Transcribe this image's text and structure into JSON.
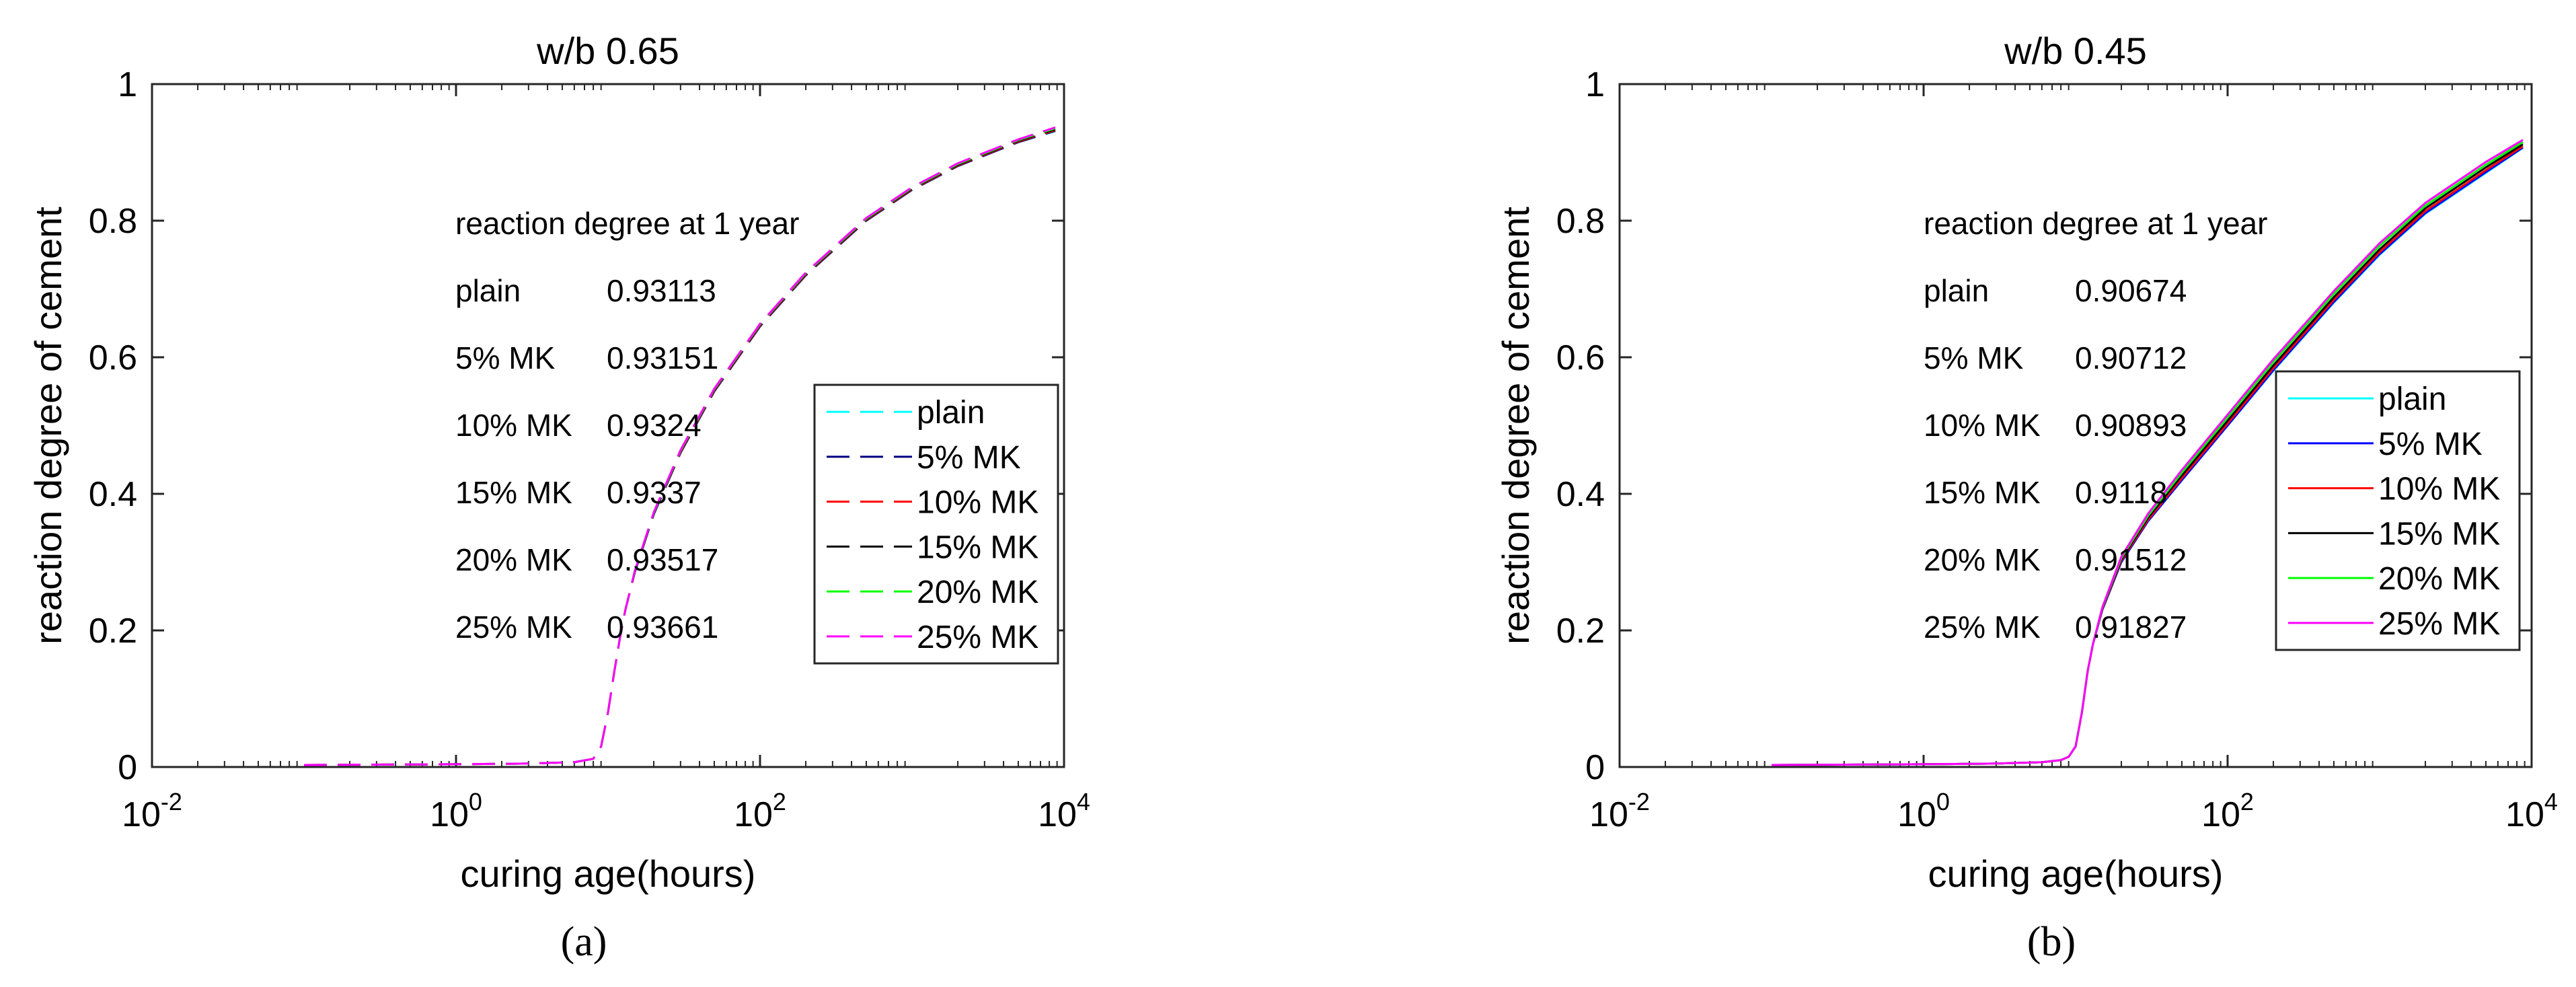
{
  "chart_data": [
    {
      "type": "line",
      "panel_label": "(a)",
      "title": "w/b 0.65",
      "xlabel": "curing age(hours)",
      "ylabel": "reaction degree of cement",
      "x_scale": "log",
      "xlim": [
        0.01,
        10000
      ],
      "ylim": [
        0,
        1
      ],
      "x_ticks": [
        0.01,
        1,
        100,
        10000
      ],
      "x_tick_labels": [
        {
          "base": "10",
          "exp": "-2"
        },
        {
          "base": "10",
          "exp": "0"
        },
        {
          "base": "10",
          "exp": "2"
        },
        {
          "base": "10",
          "exp": "4"
        }
      ],
      "y_ticks": [
        0,
        0.2,
        0.4,
        0.6,
        0.8,
        1
      ],
      "y_tick_labels": [
        "0",
        "0.2",
        "0.4",
        "0.6",
        "0.8",
        "1"
      ],
      "line_style": "dashed",
      "legend_position": "right",
      "annotation_title": "reaction degree at 1 year",
      "x": [
        0.1,
        1,
        3,
        6,
        8,
        9,
        10,
        11,
        12,
        13,
        15,
        20,
        30,
        50,
        100,
        200,
        500,
        1000,
        2000,
        5000,
        8760
      ],
      "series": [
        {
          "name": "plain",
          "color": "#00ffff",
          "final_label": "0.93113",
          "values": [
            0.003,
            0.004,
            0.005,
            0.007,
            0.012,
            0.03,
            0.08,
            0.14,
            0.19,
            0.23,
            0.285,
            0.37,
            0.46,
            0.55,
            0.645,
            0.72,
            0.8,
            0.845,
            0.88,
            0.915,
            0.931
          ]
        },
        {
          "name": "5% MK",
          "color": "#000080",
          "final_label": "0.93151",
          "values": [
            0.003,
            0.004,
            0.005,
            0.007,
            0.012,
            0.03,
            0.08,
            0.14,
            0.19,
            0.23,
            0.285,
            0.37,
            0.46,
            0.55,
            0.645,
            0.72,
            0.8,
            0.845,
            0.88,
            0.915,
            0.9315
          ]
        },
        {
          "name": "10% MK",
          "color": "#ff0000",
          "final_label": "0.9324",
          "values": [
            0.003,
            0.004,
            0.005,
            0.007,
            0.012,
            0.03,
            0.08,
            0.14,
            0.19,
            0.23,
            0.286,
            0.371,
            0.461,
            0.551,
            0.646,
            0.721,
            0.801,
            0.846,
            0.881,
            0.916,
            0.9324
          ]
        },
        {
          "name": "15% MK",
          "color": "#000000",
          "final_label": "0.9337",
          "values": [
            0.003,
            0.004,
            0.005,
            0.007,
            0.012,
            0.03,
            0.08,
            0.14,
            0.19,
            0.23,
            0.286,
            0.371,
            0.462,
            0.552,
            0.647,
            0.722,
            0.802,
            0.847,
            0.882,
            0.917,
            0.9337
          ]
        },
        {
          "name": "20% MK",
          "color": "#00ff00",
          "final_label": "0.93517",
          "values": [
            0.003,
            0.004,
            0.005,
            0.007,
            0.012,
            0.03,
            0.08,
            0.14,
            0.19,
            0.23,
            0.287,
            0.372,
            0.463,
            0.553,
            0.648,
            0.723,
            0.803,
            0.848,
            0.883,
            0.918,
            0.9352
          ]
        },
        {
          "name": "25% MK",
          "color": "#ff00ff",
          "final_label": "0.93661",
          "values": [
            0.003,
            0.004,
            0.005,
            0.007,
            0.012,
            0.03,
            0.08,
            0.14,
            0.19,
            0.23,
            0.287,
            0.373,
            0.464,
            0.554,
            0.649,
            0.724,
            0.804,
            0.849,
            0.884,
            0.919,
            0.9366
          ]
        }
      ]
    },
    {
      "type": "line",
      "panel_label": "(b)",
      "title": "w/b 0.45",
      "xlabel": "curing age(hours)",
      "ylabel": "reaction degree of cement",
      "x_scale": "log",
      "xlim": [
        0.01,
        10000
      ],
      "ylim": [
        0,
        1
      ],
      "x_ticks": [
        0.01,
        1,
        100,
        10000
      ],
      "x_tick_labels": [
        {
          "base": "10",
          "exp": "-2"
        },
        {
          "base": "10",
          "exp": "0"
        },
        {
          "base": "10",
          "exp": "2"
        },
        {
          "base": "10",
          "exp": "4"
        }
      ],
      "y_ticks": [
        0,
        0.2,
        0.4,
        0.6,
        0.8,
        1
      ],
      "y_tick_labels": [
        "0",
        "0.2",
        "0.4",
        "0.6",
        "0.8",
        "1"
      ],
      "line_style": "solid",
      "legend_position": "right",
      "annotation_title": "reaction degree at 1 year",
      "x": [
        0.1,
        1,
        3,
        6,
        8,
        9,
        10,
        11,
        12,
        13,
        15,
        20,
        30,
        50,
        100,
        200,
        500,
        1000,
        2000,
        5000,
        8760
      ],
      "series": [
        {
          "name": "plain",
          "color": "#00ffff",
          "final_label": "0.90674",
          "values": [
            0.003,
            0.004,
            0.005,
            0.007,
            0.01,
            0.015,
            0.03,
            0.08,
            0.14,
            0.18,
            0.23,
            0.3,
            0.36,
            0.42,
            0.5,
            0.58,
            0.68,
            0.75,
            0.81,
            0.87,
            0.9067
          ]
        },
        {
          "name": "5% MK",
          "color": "#0000ff",
          "final_label": "0.90712",
          "values": [
            0.003,
            0.004,
            0.005,
            0.007,
            0.01,
            0.015,
            0.03,
            0.08,
            0.14,
            0.18,
            0.23,
            0.3,
            0.36,
            0.42,
            0.5,
            0.581,
            0.681,
            0.751,
            0.811,
            0.871,
            0.9071
          ]
        },
        {
          "name": "10% MK",
          "color": "#ff0000",
          "final_label": "0.90893",
          "values": [
            0.003,
            0.004,
            0.005,
            0.007,
            0.01,
            0.015,
            0.03,
            0.08,
            0.14,
            0.18,
            0.231,
            0.302,
            0.362,
            0.423,
            0.503,
            0.584,
            0.684,
            0.754,
            0.814,
            0.874,
            0.9089
          ]
        },
        {
          "name": "15% MK",
          "color": "#000000",
          "final_label": "0.9118",
          "values": [
            0.003,
            0.004,
            0.005,
            0.007,
            0.01,
            0.015,
            0.03,
            0.08,
            0.14,
            0.18,
            0.232,
            0.304,
            0.365,
            0.427,
            0.507,
            0.588,
            0.688,
            0.758,
            0.818,
            0.878,
            0.9118
          ]
        },
        {
          "name": "20% MK",
          "color": "#00ff00",
          "final_label": "0.91512",
          "values": [
            0.003,
            0.004,
            0.005,
            0.007,
            0.01,
            0.015,
            0.03,
            0.08,
            0.14,
            0.18,
            0.233,
            0.306,
            0.368,
            0.431,
            0.512,
            0.593,
            0.693,
            0.763,
            0.822,
            0.882,
            0.9151
          ]
        },
        {
          "name": "25% MK",
          "color": "#ff00ff",
          "final_label": "0.91827",
          "values": [
            0.003,
            0.004,
            0.005,
            0.007,
            0.01,
            0.015,
            0.03,
            0.08,
            0.14,
            0.18,
            0.234,
            0.308,
            0.371,
            0.435,
            0.516,
            0.597,
            0.697,
            0.767,
            0.826,
            0.886,
            0.9183
          ]
        }
      ]
    }
  ]
}
